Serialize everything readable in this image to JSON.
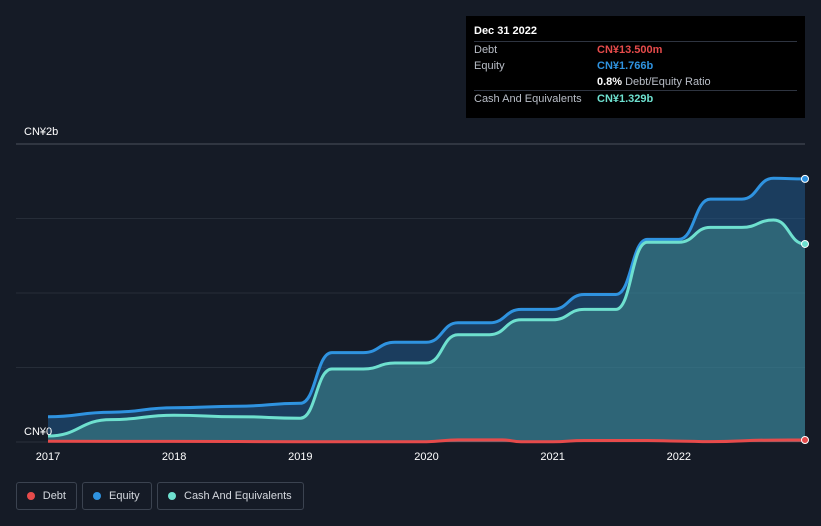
{
  "chart_data": {
    "type": "area",
    "y_axis_labels": [
      "CN¥2b",
      "CN¥0"
    ],
    "ylim": [
      0,
      2.0
    ],
    "x_ticks": [
      "2017",
      "2018",
      "2019",
      "2020",
      "2021",
      "2022"
    ],
    "x_tick_values": [
      2017.0,
      2018.0,
      2019.0,
      2020.0,
      2021.0,
      2022.0
    ],
    "xlim": [
      2017.0,
      2023.0
    ],
    "series": [
      {
        "name": "Debt",
        "color": "#e64b4b",
        "x": [
          2017.0,
          2018.0,
          2019.0,
          2020.0,
          2020.25,
          2020.6,
          2020.75,
          2021.0,
          2021.25,
          2021.75,
          2022.0,
          2022.25,
          2022.75,
          2023.0
        ],
        "values": [
          0.005,
          0.004,
          0.002,
          0.002,
          0.014,
          0.014,
          0.002,
          0.002,
          0.01,
          0.01,
          0.006,
          0.003,
          0.013,
          0.0135
        ]
      },
      {
        "name": "Equity",
        "color": "#2f93e0",
        "x": [
          2017.0,
          2017.5,
          2018.0,
          2018.5,
          2019.0,
          2019.25,
          2019.5,
          2019.75,
          2020.0,
          2020.25,
          2020.5,
          2020.75,
          2021.0,
          2021.25,
          2021.5,
          2021.75,
          2022.0,
          2022.25,
          2022.5,
          2022.75,
          2023.0
        ],
        "values": [
          0.17,
          0.2,
          0.23,
          0.24,
          0.26,
          0.6,
          0.6,
          0.67,
          0.67,
          0.8,
          0.8,
          0.89,
          0.89,
          0.99,
          0.99,
          1.36,
          1.36,
          1.63,
          1.63,
          1.77,
          1.766
        ]
      },
      {
        "name": "Cash And Equivalents",
        "color": "#6ee0cf",
        "x": [
          2017.0,
          2017.5,
          2018.0,
          2018.5,
          2019.0,
          2019.25,
          2019.5,
          2019.75,
          2020.0,
          2020.25,
          2020.5,
          2020.75,
          2021.0,
          2021.25,
          2021.5,
          2021.75,
          2022.0,
          2022.25,
          2022.5,
          2022.75,
          2023.0
        ],
        "values": [
          0.04,
          0.15,
          0.18,
          0.17,
          0.16,
          0.49,
          0.49,
          0.53,
          0.53,
          0.72,
          0.72,
          0.82,
          0.82,
          0.89,
          0.89,
          1.34,
          1.34,
          1.44,
          1.44,
          1.49,
          1.329
        ]
      }
    ]
  },
  "tooltip": {
    "date": "Dec 31 2022",
    "debt_label": "Debt",
    "debt_value": "CN¥13.500m",
    "equity_label": "Equity",
    "equity_value": "CN¥1.766b",
    "ratio_value": "0.8%",
    "ratio_label": "Debt/Equity Ratio",
    "cash_label": "Cash And Equivalents",
    "cash_value": "CN¥1.329b"
  },
  "legend": {
    "debt": "Debt",
    "equity": "Equity",
    "cash": "Cash And Equivalents"
  }
}
